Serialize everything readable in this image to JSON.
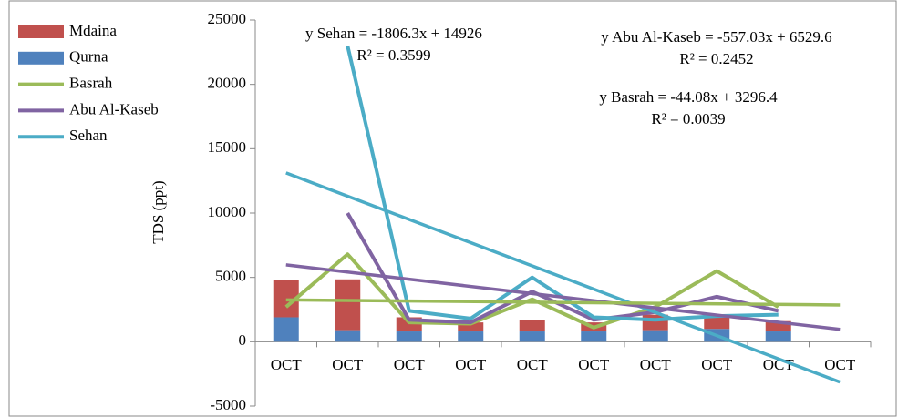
{
  "chart_data": {
    "type": "bar_line",
    "y_label": "TDS (ppt)",
    "categories": [
      "OCT",
      "OCT",
      "OCT",
      "OCT",
      "OCT",
      "OCT",
      "OCT",
      "OCT",
      "OCT",
      "OCT"
    ],
    "series": [
      {
        "name": "Mdaina",
        "kind": "bar",
        "color": "#c0504d",
        "values": [
          2900,
          3950,
          1100,
          700,
          900,
          700,
          1200,
          1000,
          800,
          null
        ]
      },
      {
        "name": "Qurna",
        "kind": "bar",
        "color": "#4f81bd",
        "values": [
          1900,
          900,
          800,
          800,
          800,
          800,
          900,
          1000,
          800,
          null
        ]
      },
      {
        "name": "Basrah",
        "kind": "line",
        "color": "#9bbb59",
        "values": [
          2700,
          6800,
          1500,
          1400,
          3300,
          1100,
          2700,
          5500,
          2700,
          null
        ]
      },
      {
        "name": "Abu Al-Kaseb",
        "kind": "line",
        "color": "#8064a2",
        "values": [
          null,
          10000,
          1700,
          1500,
          3900,
          1700,
          2300,
          3500,
          2400,
          null
        ]
      },
      {
        "name": "Sehan",
        "kind": "line",
        "color": "#4bacc6",
        "values": [
          null,
          23000,
          2400,
          1800,
          5000,
          1900,
          1700,
          2000,
          2100,
          null
        ]
      }
    ],
    "trendlines": [
      {
        "label": "y Sehan = -1806.3x + 14926",
        "r2": "R² = 0.3599",
        "slope": -1806.3,
        "intercept": 14926,
        "color": "#4bacc6"
      },
      {
        "label": "y Abu Al-Kaseb = -557.03x + 6529.6",
        "r2": "R² = 0.2452",
        "slope": -557.03,
        "intercept": 6529.6,
        "color": "#8064a2"
      },
      {
        "label": "y Basrah = -44.08x + 3296.4",
        "r2": "R² = 0.0039",
        "slope": -44.08,
        "intercept": 3296.4,
        "color": "#9bbb59"
      }
    ],
    "ylim": [
      -5000,
      25000
    ],
    "yticks": [
      -5000,
      0,
      5000,
      10000,
      15000,
      20000,
      25000
    ],
    "legend": "top-left"
  }
}
